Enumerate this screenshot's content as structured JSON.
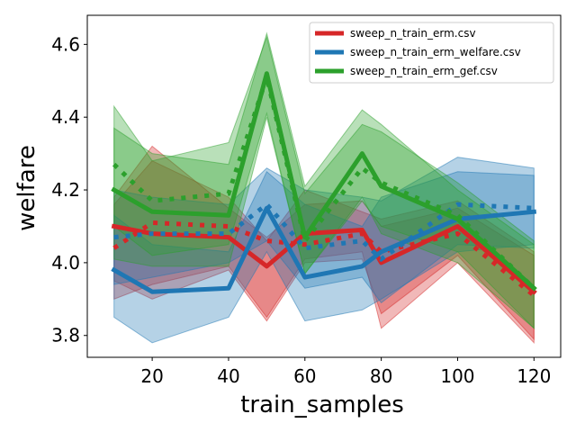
{
  "chart_data": {
    "type": "line",
    "xlabel": "train_samples",
    "ylabel": "welfare",
    "xlim": [
      3,
      127
    ],
    "ylim": [
      3.74,
      4.68
    ],
    "x_ticks": [
      20,
      40,
      60,
      80,
      100,
      120
    ],
    "y_ticks": [
      3.8,
      4.0,
      4.2,
      4.4,
      4.6
    ],
    "grid": false,
    "legend_position": "top-right",
    "x": [
      10,
      20,
      40,
      50,
      60,
      75,
      80,
      100,
      120
    ],
    "series": [
      {
        "name": "sweep_n_train_erm.csv",
        "color": "#d62728",
        "values": [
          4.1,
          4.08,
          4.07,
          3.99,
          4.08,
          4.09,
          4.0,
          4.1,
          3.92
        ],
        "band_upper": [
          4.18,
          4.32,
          4.15,
          4.07,
          4.16,
          4.17,
          4.1,
          4.15,
          4.02
        ],
        "band_lower": [
          3.95,
          3.9,
          3.98,
          3.84,
          4.0,
          4.01,
          3.86,
          4.02,
          3.79
        ],
        "dotted_values": [
          4.04,
          4.11,
          4.1,
          4.06,
          4.05,
          4.08,
          4.03,
          4.08,
          3.91
        ],
        "dotted_band_upper": [
          4.16,
          4.28,
          4.18,
          4.06,
          4.2,
          4.14,
          4.12,
          4.17,
          4.03
        ],
        "dotted_band_lower": [
          3.9,
          3.94,
          3.99,
          3.85,
          4.01,
          4.03,
          3.82,
          4.0,
          3.78
        ]
      },
      {
        "name": "sweep_n_train_erm_welfare.csv",
        "color": "#1f77b4",
        "values": [
          3.98,
          3.92,
          3.93,
          4.15,
          3.96,
          3.99,
          4.03,
          4.12,
          4.14
        ],
        "band_upper": [
          4.13,
          4.05,
          4.03,
          4.25,
          4.16,
          4.1,
          4.18,
          4.25,
          4.24
        ],
        "band_lower": [
          3.85,
          3.78,
          3.85,
          4.03,
          3.84,
          3.87,
          3.9,
          4.03,
          4.05
        ],
        "dotted_values": [
          4.07,
          4.08,
          4.08,
          4.16,
          4.04,
          4.06,
          4.01,
          4.16,
          4.15
        ],
        "dotted_band_upper": [
          4.2,
          4.18,
          4.16,
          4.26,
          4.2,
          4.18,
          4.17,
          4.29,
          4.26
        ],
        "dotted_band_lower": [
          3.94,
          3.96,
          4.0,
          4.06,
          3.93,
          3.96,
          3.89,
          4.05,
          4.04
        ]
      },
      {
        "name": "sweep_n_train_erm_gef.csv",
        "color": "#2ca02c",
        "values": [
          4.2,
          4.14,
          4.13,
          4.52,
          4.07,
          4.3,
          4.21,
          4.12,
          3.93
        ],
        "band_upper": [
          4.37,
          4.3,
          4.27,
          4.63,
          4.21,
          4.42,
          4.38,
          4.2,
          4.05
        ],
        "band_lower": [
          4.01,
          3.99,
          3.99,
          4.4,
          3.97,
          4.18,
          4.08,
          4.0,
          3.82
        ],
        "dotted_values": [
          4.27,
          4.17,
          4.19,
          4.51,
          4.06,
          4.26,
          4.22,
          4.13,
          3.93
        ],
        "dotted_band_upper": [
          4.43,
          4.28,
          4.33,
          4.62,
          4.19,
          4.38,
          4.36,
          4.22,
          4.06
        ],
        "dotted_band_lower": [
          4.1,
          4.02,
          4.05,
          4.41,
          3.97,
          4.17,
          4.1,
          4.03,
          3.82
        ]
      }
    ]
  }
}
